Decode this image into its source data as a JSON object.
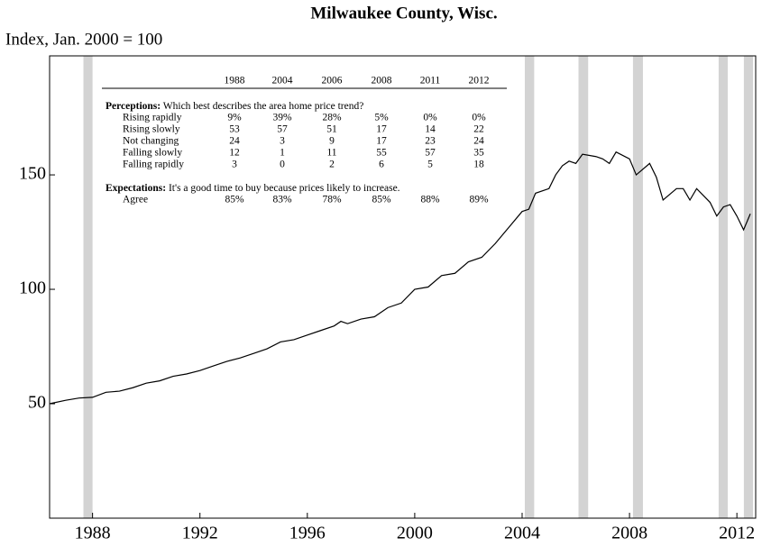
{
  "chart_data": {
    "type": "line",
    "title": "Milwaukee County, Wisc.",
    "y_label": "Index, Jan. 2000 = 100",
    "x": [
      1986.4,
      1987,
      1987.5,
      1988,
      1988.5,
      1989,
      1989.5,
      1990,
      1990.5,
      1991,
      1991.5,
      1992,
      1992.5,
      1993,
      1993.5,
      1994,
      1994.5,
      1995,
      1995.5,
      1996,
      1996.5,
      1997,
      1997.25,
      1997.5,
      1998,
      1998.5,
      1999,
      1999.5,
      2000,
      2000.5,
      2001,
      2001.5,
      2002,
      2002.5,
      2003,
      2003.5,
      2004,
      2004.25,
      2004.5,
      2005,
      2005.25,
      2005.5,
      2005.75,
      2006,
      2006.25,
      2006.75,
      2007,
      2007.25,
      2007.5,
      2008,
      2008.25,
      2008.75,
      2009,
      2009.25,
      2009.75,
      2010,
      2010.25,
      2010.5,
      2011,
      2011.25,
      2011.5,
      2011.75,
      2012,
      2012.25,
      2012.5
    ],
    "series": [
      {
        "name": "Index",
        "color": "#000000",
        "values": [
          50,
          51.5,
          52.5,
          52.8,
          55,
          55.5,
          57,
          59,
          60,
          62,
          63,
          64.5,
          66.5,
          68.5,
          70,
          72,
          74,
          77,
          78,
          80,
          82,
          84,
          86,
          85,
          87,
          88,
          92,
          94,
          100,
          101,
          106,
          107,
          112,
          114,
          120,
          127,
          134,
          135,
          142,
          144,
          150,
          154,
          156,
          155,
          159,
          158,
          157,
          155,
          160,
          157,
          150,
          155,
          149,
          139,
          144,
          144,
          139,
          144,
          138,
          132,
          136,
          137,
          132,
          126,
          133
        ]
      }
    ],
    "shaded_periods": [
      [
        1987.66,
        1988.0
      ],
      [
        2004.1,
        2004.45
      ],
      [
        2006.1,
        2006.46
      ],
      [
        2008.13,
        2008.5
      ],
      [
        2011.32,
        2011.66
      ],
      [
        2012.26,
        2012.6
      ]
    ],
    "shade_color": "#d3d3d3",
    "xlim": [
      1986.4,
      2012.7
    ],
    "xticks": [
      1988,
      1992,
      1996,
      2000,
      2004,
      2008,
      2012
    ],
    "ylim": [
      0,
      202
    ],
    "yticks": [
      50,
      100,
      150
    ],
    "inset": {
      "columns": [
        "1988",
        "2004",
        "2006",
        "2008",
        "2011",
        "2012"
      ],
      "sections": [
        {
          "heading": "Perceptions:",
          "question": "Which best describes the area home price trend?",
          "rows": [
            {
              "label": "Rising rapidly",
              "cells": [
                "9%",
                "39%",
                "28%",
                "5%",
                "0%",
                "0%"
              ]
            },
            {
              "label": "Rising slowly",
              "cells": [
                "53",
                "57",
                "51",
                "17",
                "14",
                "22"
              ]
            },
            {
              "label": "Not changing",
              "cells": [
                "24",
                "3",
                "9",
                "17",
                "23",
                "24"
              ]
            },
            {
              "label": "Falling slowly",
              "cells": [
                "12",
                "1",
                "11",
                "55",
                "57",
                "35"
              ]
            },
            {
              "label": "Falling rapidly",
              "cells": [
                "3",
                "0",
                "2",
                "6",
                "5",
                "18"
              ]
            }
          ]
        },
        {
          "heading": "Expectations:",
          "question": "It's a good time to buy because prices likely to increase.",
          "rows": [
            {
              "label": "Agree",
              "cells": [
                "85%",
                "83%",
                "78%",
                "85%",
                "88%",
                "89%"
              ]
            }
          ]
        }
      ]
    }
  }
}
